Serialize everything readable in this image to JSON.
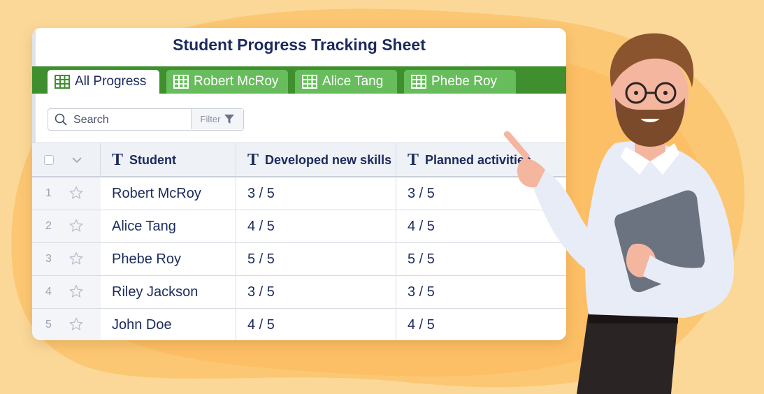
{
  "sheet": {
    "title": "Student Progress Tracking Sheet",
    "tabs": [
      {
        "label": "All Progress",
        "active": true
      },
      {
        "label": "Robert McRoy",
        "active": false
      },
      {
        "label": "Alice Tang",
        "active": false
      },
      {
        "label": "Phebe Roy",
        "active": false
      }
    ],
    "search": {
      "placeholder": "Search",
      "filter_label": "Filter"
    },
    "columns": [
      "Student",
      "Developed new skills",
      "Planned activities"
    ],
    "rows": [
      {
        "num": "1",
        "student": "Robert McRoy",
        "skills": "3 / 5",
        "activities": "3 / 5"
      },
      {
        "num": "2",
        "student": "Alice Tang",
        "skills": "4 / 5",
        "activities": "4 / 5"
      },
      {
        "num": "3",
        "student": "Phebe Roy",
        "skills": "5 / 5",
        "activities": "5 / 5"
      },
      {
        "num": "4",
        "student": "Riley Jackson",
        "skills": "3 / 5",
        "activities": "3 / 5"
      },
      {
        "num": "5",
        "student": "John Doe",
        "skills": "4 / 5",
        "activities": "4 / 5"
      }
    ]
  },
  "icons": {
    "tab": "grid-table-icon",
    "search": "search-icon",
    "filter": "funnel-icon",
    "column_type": "text-type-icon",
    "row": "star-icon",
    "header_select": "checkbox-icon",
    "header_menu": "chevron-down-icon"
  },
  "colors": {
    "background": "#fbd898",
    "tab_bar": "#3f8f2f",
    "tab_inactive": "#67bd5c",
    "text_dark": "#1c2a5c"
  }
}
